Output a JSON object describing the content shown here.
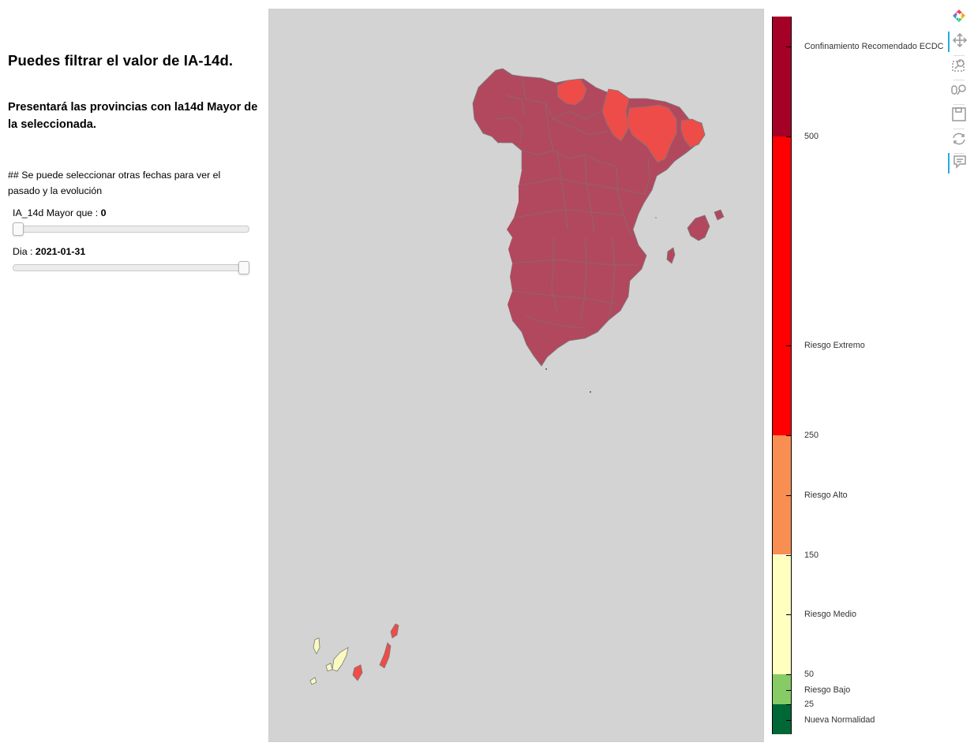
{
  "panel": {
    "heading1": "Puedes filtrar el valor de IA-14d.",
    "heading2": "Presentará las provincias con la14d Mayor de la seleccionada.",
    "note": "## Se puede seleccionar otras fechas para ver el pasado y la evolución",
    "ia_slider": {
      "label": "IA_14d Mayor que : ",
      "value": "0",
      "fraction": 0.0
    },
    "day_slider": {
      "label": "Dia : ",
      "value": "2021-01-31",
      "fraction": 1.0
    }
  },
  "map": {
    "background": "#d3d3d3",
    "fill_colors": {
      "confinamiento": "#b2485e",
      "riesgo_extremo": "#ee4c48",
      "riesgo_medio": "#fafac0"
    }
  },
  "colorbar": {
    "low": 0,
    "high": 600,
    "bands": [
      {
        "from": 0,
        "to": 25,
        "color": "#006837"
      },
      {
        "from": 25,
        "to": 50,
        "color": "#86cb66"
      },
      {
        "from": 50,
        "to": 150,
        "color": "#ffffc0"
      },
      {
        "from": 150,
        "to": 250,
        "color": "#f98e52"
      },
      {
        "from": 250,
        "to": 500,
        "color": "#ff0000"
      },
      {
        "from": 500,
        "to": 600,
        "color": "#a50026"
      }
    ],
    "labels": [
      {
        "value": 575,
        "text": "Confinamiento Recomendado ECDC"
      },
      {
        "value": 500,
        "text": "500"
      },
      {
        "value": 325,
        "text": "Riesgo Extremo"
      },
      {
        "value": 250,
        "text": "250"
      },
      {
        "value": 200,
        "text": "Riesgo Alto"
      },
      {
        "value": 150,
        "text": "150"
      },
      {
        "value": 100,
        "text": "Riesgo Medio"
      },
      {
        "value": 50,
        "text": "50"
      },
      {
        "value": 37,
        "text": "Riesgo Bajo"
      },
      {
        "value": 25,
        "text": "25"
      },
      {
        "value": 12,
        "text": "Nueva Normalidad"
      }
    ]
  },
  "toolbar": {
    "tools": [
      {
        "name": "bokeh-logo-icon",
        "active": false
      },
      {
        "name": "pan-tool-icon",
        "active": true
      },
      {
        "name": "box-zoom-tool-icon",
        "active": false
      },
      {
        "name": "wheel-zoom-tool-icon",
        "active": false
      },
      {
        "name": "save-tool-icon",
        "active": false
      },
      {
        "name": "reset-tool-icon",
        "active": false
      },
      {
        "name": "hover-tool-icon",
        "active": true
      }
    ]
  }
}
